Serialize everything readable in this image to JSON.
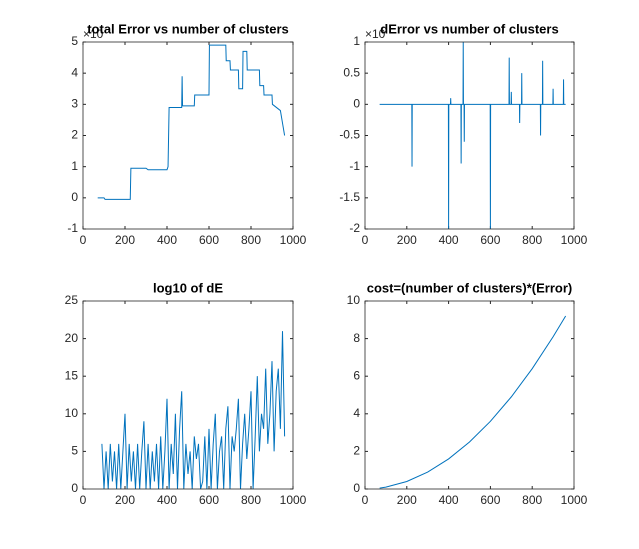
{
  "chart_data": [
    {
      "type": "line",
      "title": "total Error vs number of clusters",
      "exponent_label": "×10",
      "x": [
        70,
        100,
        105,
        225,
        228,
        300,
        310,
        400,
        405,
        410,
        470,
        472,
        474,
        530,
        532,
        600,
        602,
        680,
        682,
        700,
        702,
        740,
        742,
        760,
        762,
        780,
        782,
        840,
        842,
        860,
        862,
        900,
        902,
        940,
        960
      ],
      "series": [
        {
          "color": "#0072bd",
          "values": [
            0,
            0,
            -0.05,
            -0.05,
            0.95,
            0.95,
            0.9,
            0.9,
            1.0,
            2.9,
            2.9,
            3.9,
            2.95,
            2.95,
            3.3,
            3.3,
            4.9,
            4.9,
            4.4,
            4.4,
            4.1,
            4.1,
            3.5,
            3.5,
            4.7,
            4.7,
            4.1,
            4.1,
            3.6,
            3.6,
            3.3,
            3.3,
            3.0,
            2.8,
            2.0
          ]
        }
      ],
      "xlim": [
        0,
        1000
      ],
      "xticks": [
        0,
        200,
        400,
        600,
        800,
        1000
      ],
      "ylim": [
        -1,
        5
      ],
      "yticks": [
        -1,
        0,
        1,
        2,
        3,
        4,
        5
      ]
    },
    {
      "type": "line",
      "title": "dError vs number of clusters",
      "exponent_label": "×10",
      "x": [
        70,
        224,
        225,
        226,
        399,
        400,
        401,
        409,
        410,
        411,
        459,
        460,
        461,
        469,
        470,
        471,
        474,
        475,
        476,
        599,
        600,
        601,
        689,
        690,
        691,
        699,
        700,
        701,
        739,
        740,
        741,
        749,
        750,
        751,
        839,
        840,
        841,
        849,
        850,
        851,
        899,
        900,
        901,
        949,
        950,
        951,
        960
      ],
      "series": [
        {
          "color": "#0072bd",
          "values": [
            0,
            0,
            -1,
            0,
            0,
            -2,
            0,
            0,
            0.1,
            0,
            0,
            -0.95,
            0,
            0,
            1,
            0,
            0,
            -0.6,
            0,
            0,
            -2,
            0,
            0,
            0.75,
            0,
            0,
            0.2,
            0,
            0,
            -0.3,
            0,
            0,
            0.5,
            0,
            0,
            -0.5,
            0,
            0,
            0.7,
            0,
            0,
            0.25,
            0,
            0,
            0.4,
            0,
            0
          ]
        }
      ],
      "xlim": [
        0,
        1000
      ],
      "xticks": [
        0,
        200,
        400,
        600,
        800,
        1000
      ],
      "ylim": [
        -2,
        1
      ],
      "yticks": [
        -2,
        -1.5,
        -1,
        -0.5,
        0,
        0.5,
        1
      ]
    },
    {
      "type": "line",
      "title": "log10 of dE",
      "x": [
        90,
        100,
        110,
        120,
        130,
        140,
        150,
        160,
        170,
        180,
        190,
        200,
        210,
        220,
        230,
        240,
        250,
        260,
        270,
        280,
        290,
        300,
        310,
        320,
        330,
        340,
        350,
        360,
        370,
        380,
        390,
        400,
        410,
        420,
        430,
        440,
        450,
        460,
        470,
        480,
        490,
        500,
        510,
        520,
        530,
        540,
        550,
        560,
        570,
        580,
        590,
        600,
        610,
        620,
        630,
        640,
        650,
        660,
        670,
        680,
        690,
        700,
        710,
        720,
        730,
        740,
        750,
        760,
        770,
        780,
        790,
        800,
        810,
        820,
        830,
        840,
        850,
        860,
        870,
        880,
        890,
        900,
        910,
        920,
        930,
        940,
        950,
        960
      ],
      "series": [
        {
          "color": "#0072bd",
          "values": [
            6,
            0,
            5,
            0,
            6,
            1,
            5,
            0,
            6,
            0,
            5,
            10,
            0,
            6,
            1,
            5,
            0,
            6,
            0,
            5,
            9,
            0,
            6,
            0,
            5,
            1,
            6,
            0,
            7,
            0,
            5,
            12,
            0,
            6,
            2,
            10,
            0,
            8,
            13,
            0,
            6,
            2,
            5,
            0,
            7,
            4,
            6,
            0,
            1,
            7,
            0,
            8,
            0,
            6,
            10,
            0,
            5,
            7,
            0,
            8,
            11,
            0,
            7,
            5,
            8,
            12,
            0,
            6,
            10,
            4,
            8,
            13,
            0,
            7,
            15,
            5,
            10,
            8,
            16,
            6,
            10,
            17,
            5,
            13,
            16,
            8,
            21,
            7
          ]
        }
      ],
      "xlim": [
        0,
        1000
      ],
      "xticks": [
        0,
        200,
        400,
        600,
        800,
        1000
      ],
      "ylim": [
        0,
        25
      ],
      "yticks": [
        0,
        5,
        10,
        15,
        20,
        25
      ]
    },
    {
      "type": "line",
      "title": "cost=(number of clusters)*(Error)",
      "x": [
        70,
        100,
        200,
        300,
        400,
        500,
        600,
        700,
        800,
        900,
        960
      ],
      "series": [
        {
          "color": "#0072bd",
          "values": [
            0.05,
            0.1,
            0.4,
            0.9,
            1.6,
            2.5,
            3.6,
            4.9,
            6.4,
            8.1,
            9.2
          ]
        }
      ],
      "xlim": [
        0,
        1000
      ],
      "xticks": [
        0,
        200,
        400,
        600,
        800,
        1000
      ],
      "ylim": [
        0,
        10
      ],
      "yticks": [
        0,
        2,
        4,
        6,
        8,
        10
      ]
    }
  ]
}
